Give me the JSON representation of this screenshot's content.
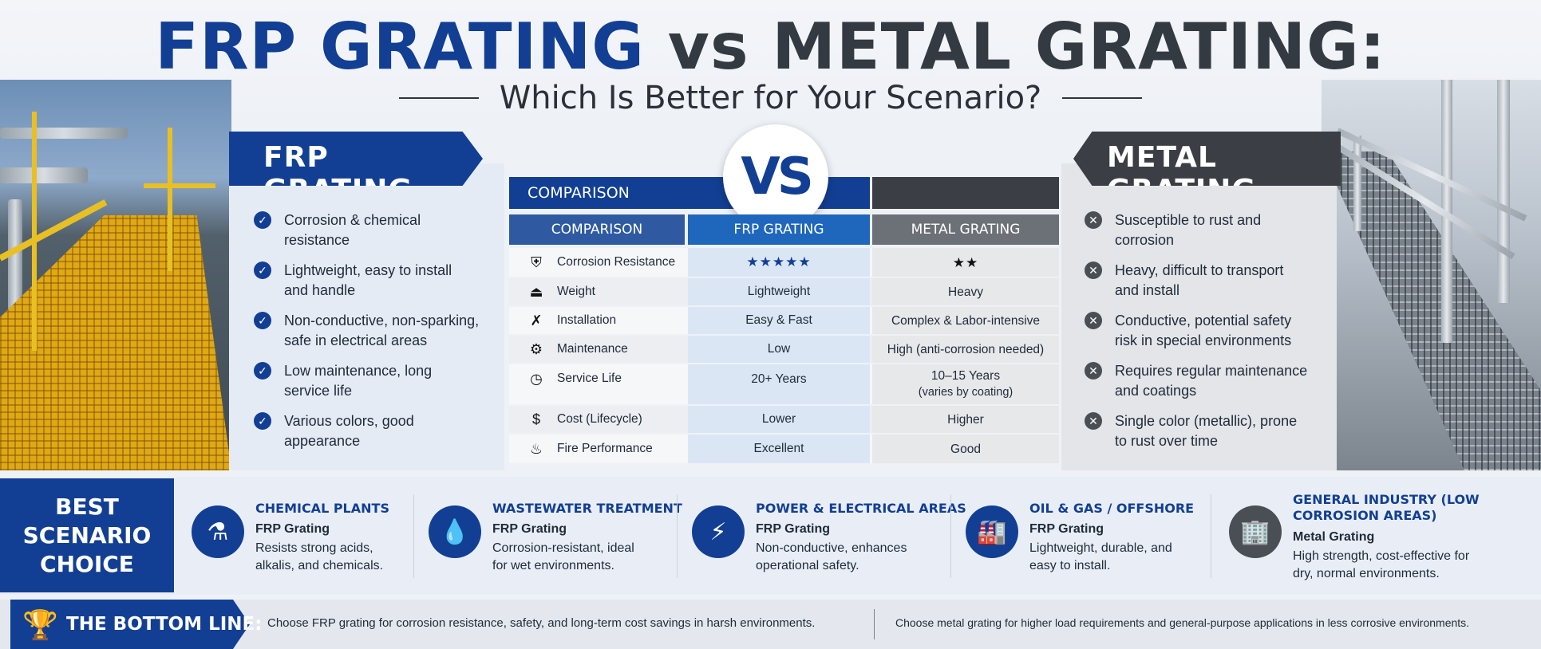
{
  "header": {
    "title_blue": "FRP GRATING",
    "title_vs": " vs ",
    "title_dark": "METAL GRATING:",
    "subtitle": "Which Is Better for Your Scenario?"
  },
  "frp": {
    "banner": "FRP GRATING",
    "bullets": [
      "Corrosion & chemical resistance",
      "Lightweight, easy to install and handle",
      "Non-conductive, non-sparking, safe in electrical areas",
      "Low maintenance, long service life",
      "Various colors, good appearance"
    ]
  },
  "metal": {
    "banner": "METAL GRATING",
    "bullets": [
      "Susceptible to rust and corrosion",
      "Heavy, difficult to transport and install",
      "Conductive, potential safety risk in special environments",
      "Requires regular maintenance and coatings",
      "Single color (metallic), prone to rust over time"
    ]
  },
  "comparison": {
    "top_label": "COMPARISON",
    "vs": "VS",
    "headers": [
      "COMPARISON",
      "FRP GRATING",
      "METAL GRATING"
    ],
    "rows": [
      {
        "icon": "shield-icon",
        "label": "Corrosion Resistance",
        "frp": "★★★★★",
        "metal": "★★"
      },
      {
        "icon": "weight-icon",
        "label": "Weight",
        "frp": "Lightweight",
        "metal": "Heavy"
      },
      {
        "icon": "tools-icon",
        "label": "Installation",
        "frp": "Easy & Fast",
        "metal": "Complex & Labor-intensive"
      },
      {
        "icon": "gear-icon",
        "label": "Maintenance",
        "frp": "Low",
        "metal": "High (anti-corrosion needed)"
      },
      {
        "icon": "clock-icon",
        "label": "Service Life",
        "frp": "20+ Years",
        "metal": "10–15 Years",
        "metal_note": "(varies by coating)"
      },
      {
        "icon": "dollar-icon",
        "label": "Cost (Lifecycle)",
        "frp": "Lower",
        "metal": "Higher"
      },
      {
        "icon": "flame-icon",
        "label": "Fire Performance",
        "frp": "Excellent",
        "metal": "Good"
      }
    ]
  },
  "scenarios": {
    "heading": "BEST SCENARIO\nCHOICE",
    "items": [
      {
        "icon": "flask-icon",
        "title": "CHEMICAL PLANTS",
        "choice": "FRP Grating",
        "desc": "Resists strong acids, alkalis, and chemicals."
      },
      {
        "icon": "water-drop-icon",
        "title": "WASTEWATER TREATMENT",
        "choice": "FRP Grating",
        "desc": "Corrosion-resistant, ideal for wet environments."
      },
      {
        "icon": "lightning-icon",
        "title": "POWER & ELECTRICAL AREAS",
        "choice": "FRP Grating",
        "desc": "Non-conductive, enhances operational safety."
      },
      {
        "icon": "factory-icon",
        "title": "OIL & GAS / OFFSHORE",
        "choice": "FRP Grating",
        "desc": "Lightweight, durable, and easy to install."
      },
      {
        "icon": "building-icon",
        "title": "GENERAL INDUSTRY (LOW CORROSION AREAS)",
        "choice": "Metal Grating",
        "desc": "High strength, cost-effective for dry, normal environments."
      }
    ]
  },
  "bottom_line": {
    "label": "THE BOTTOM LINE:",
    "frp_text": "Choose FRP grating for corrosion resistance, safety, and long-term cost savings in harsh environments.",
    "metal_text": "Choose metal grating for higher load requirements and general-purpose applications in less corrosive environments."
  },
  "colors": {
    "brand_blue": "#123f93",
    "dark_gray": "#3b3f45",
    "trophy_gold": "#f1b300"
  }
}
